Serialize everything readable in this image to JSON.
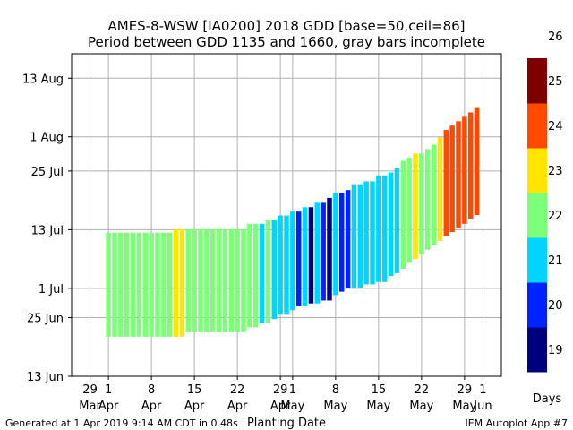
{
  "chart_data": {
    "type": "bar",
    "title_line1": "AMES-8-WSW [IA0200] 2018 GDD [base=50,ceil=86]",
    "title_line2": "Period between GDD 1135 and 1660, gray bars incomplete",
    "xlabel": "Planting Date",
    "ylabel": "",
    "footer_left": "Generated at 1 Apr 2019 9:14 AM CDT in 0.48s",
    "footer_right": "IEM Autoplot App #7",
    "x_ticks": [
      {
        "day": 29,
        "label1": "29",
        "label2": "Mar"
      },
      {
        "day": 32,
        "label1": "1",
        "label2": "Apr"
      },
      {
        "day": 39,
        "label1": "8",
        "label2": "Apr"
      },
      {
        "day": 46,
        "label1": "15",
        "label2": "Apr"
      },
      {
        "day": 53,
        "label1": "22",
        "label2": "Apr"
      },
      {
        "day": 60,
        "label1": "29",
        "label2": "Apr"
      },
      {
        "day": 62,
        "label1": "1",
        "label2": "May"
      },
      {
        "day": 69,
        "label1": "8",
        "label2": "May"
      },
      {
        "day": 76,
        "label1": "15",
        "label2": "May"
      },
      {
        "day": 83,
        "label1": "22",
        "label2": "May"
      },
      {
        "day": 90,
        "label1": "29",
        "label2": "May"
      },
      {
        "day": 93,
        "label1": "1",
        "label2": "Jun"
      }
    ],
    "y_ticks": [
      {
        "day": 164,
        "label": "13 Jun"
      },
      {
        "day": 176,
        "label": "25 Jun"
      },
      {
        "day": 182,
        "label": "1 Jul"
      },
      {
        "day": 194,
        "label": "13 Jul"
      },
      {
        "day": 206,
        "label": "25 Jul"
      },
      {
        "day": 213,
        "label": "1 Aug"
      },
      {
        "day": 225,
        "label": "13 Aug"
      }
    ],
    "x_range": [
      26,
      96
    ],
    "y_range": [
      164,
      230
    ],
    "grid": true,
    "colorbar": {
      "title": "Days",
      "levels": [
        19,
        20,
        21,
        22,
        23,
        24,
        25,
        26
      ],
      "colors": [
        "#00007f",
        "#0022ff",
        "#00d4ff",
        "#7dff7a",
        "#ffe500",
        "#ff4a00",
        "#7f0000"
      ]
    },
    "bars": [
      {
        "x": 32,
        "start": 172.1,
        "end": 193.4,
        "days": 22
      },
      {
        "x": 33,
        "start": 172.1,
        "end": 193.4,
        "days": 22
      },
      {
        "x": 34,
        "start": 172.1,
        "end": 193.4,
        "days": 22
      },
      {
        "x": 35,
        "start": 172.1,
        "end": 193.4,
        "days": 22
      },
      {
        "x": 36,
        "start": 172.1,
        "end": 193.4,
        "days": 22
      },
      {
        "x": 37,
        "start": 172.1,
        "end": 193.4,
        "days": 22
      },
      {
        "x": 38,
        "start": 172.1,
        "end": 193.4,
        "days": 22
      },
      {
        "x": 39,
        "start": 172.1,
        "end": 193.4,
        "days": 22
      },
      {
        "x": 40,
        "start": 172.1,
        "end": 193.4,
        "days": 22
      },
      {
        "x": 41,
        "start": 172.1,
        "end": 193.4,
        "days": 22
      },
      {
        "x": 42,
        "start": 172.1,
        "end": 193.4,
        "days": 22
      },
      {
        "x": 43,
        "start": 172.1,
        "end": 194.1,
        "days": 23
      },
      {
        "x": 44,
        "start": 172.1,
        "end": 194.1,
        "days": 23
      },
      {
        "x": 45,
        "start": 173.0,
        "end": 194.1,
        "days": 22
      },
      {
        "x": 46,
        "start": 173.0,
        "end": 194.1,
        "days": 22
      },
      {
        "x": 47,
        "start": 173.0,
        "end": 194.1,
        "days": 22
      },
      {
        "x": 48,
        "start": 173.0,
        "end": 194.1,
        "days": 22
      },
      {
        "x": 49,
        "start": 173.0,
        "end": 194.1,
        "days": 22
      },
      {
        "x": 50,
        "start": 173.0,
        "end": 194.1,
        "days": 22
      },
      {
        "x": 51,
        "start": 173.0,
        "end": 194.1,
        "days": 22
      },
      {
        "x": 52,
        "start": 173.0,
        "end": 194.1,
        "days": 22
      },
      {
        "x": 53,
        "start": 173.0,
        "end": 194.1,
        "days": 22
      },
      {
        "x": 54,
        "start": 173.0,
        "end": 194.1,
        "days": 22
      },
      {
        "x": 55,
        "start": 174.0,
        "end": 195.2,
        "days": 22
      },
      {
        "x": 56,
        "start": 174.0,
        "end": 195.2,
        "days": 22
      },
      {
        "x": 57,
        "start": 175.0,
        "end": 195.2,
        "days": 21
      },
      {
        "x": 58,
        "start": 175.0,
        "end": 195.9,
        "days": 22
      },
      {
        "x": 59,
        "start": 175.7,
        "end": 195.9,
        "days": 21
      },
      {
        "x": 60,
        "start": 176.6,
        "end": 196.9,
        "days": 21
      },
      {
        "x": 61,
        "start": 176.6,
        "end": 196.9,
        "days": 21
      },
      {
        "x": 62,
        "start": 177.5,
        "end": 197.7,
        "days": 21
      },
      {
        "x": 63,
        "start": 178.3,
        "end": 197.7,
        "days": 20
      },
      {
        "x": 64,
        "start": 178.3,
        "end": 198.6,
        "days": 21
      },
      {
        "x": 65,
        "start": 178.9,
        "end": 198.6,
        "days": 19
      },
      {
        "x": 66,
        "start": 178.9,
        "end": 199.5,
        "days": 21
      },
      {
        "x": 67,
        "start": 179.5,
        "end": 199.5,
        "days": 20
      },
      {
        "x": 68,
        "start": 179.5,
        "end": 200.5,
        "days": 19
      },
      {
        "x": 69,
        "start": 180.6,
        "end": 201.5,
        "days": 21
      },
      {
        "x": 70,
        "start": 181.3,
        "end": 201.5,
        "days": 20
      },
      {
        "x": 71,
        "start": 182.0,
        "end": 202.1,
        "days": 20
      },
      {
        "x": 72,
        "start": 182.0,
        "end": 203.3,
        "days": 21
      },
      {
        "x": 73,
        "start": 182.0,
        "end": 203.3,
        "days": 21
      },
      {
        "x": 74,
        "start": 182.8,
        "end": 203.9,
        "days": 21
      },
      {
        "x": 75,
        "start": 182.8,
        "end": 203.9,
        "days": 21
      },
      {
        "x": 76,
        "start": 183.3,
        "end": 205.1,
        "days": 21
      },
      {
        "x": 77,
        "start": 183.3,
        "end": 205.1,
        "days": 21
      },
      {
        "x": 78,
        "start": 184.5,
        "end": 205.7,
        "days": 21
      },
      {
        "x": 79,
        "start": 185.1,
        "end": 206.6,
        "days": 21
      },
      {
        "x": 80,
        "start": 186.0,
        "end": 208.1,
        "days": 22
      },
      {
        "x": 81,
        "start": 187.2,
        "end": 208.7,
        "days": 22
      },
      {
        "x": 82,
        "start": 188.0,
        "end": 209.6,
        "days": 23
      },
      {
        "x": 83,
        "start": 189.0,
        "end": 209.6,
        "days": 22
      },
      {
        "x": 84,
        "start": 189.9,
        "end": 210.5,
        "days": 22
      },
      {
        "x": 85,
        "start": 190.8,
        "end": 211.4,
        "days": 22
      },
      {
        "x": 86,
        "start": 191.7,
        "end": 212.9,
        "days": 23
      },
      {
        "x": 87,
        "start": 192.6,
        "end": 214.4,
        "days": 24
      },
      {
        "x": 88,
        "start": 193.5,
        "end": 215.3,
        "days": 24
      },
      {
        "x": 89,
        "start": 194.4,
        "end": 216.2,
        "days": 24
      },
      {
        "x": 90,
        "start": 195.2,
        "end": 217.1,
        "days": 24
      },
      {
        "x": 91,
        "start": 196.1,
        "end": 218.0,
        "days": 24
      },
      {
        "x": 92,
        "start": 197.0,
        "end": 218.9,
        "days": 24
      }
    ]
  }
}
